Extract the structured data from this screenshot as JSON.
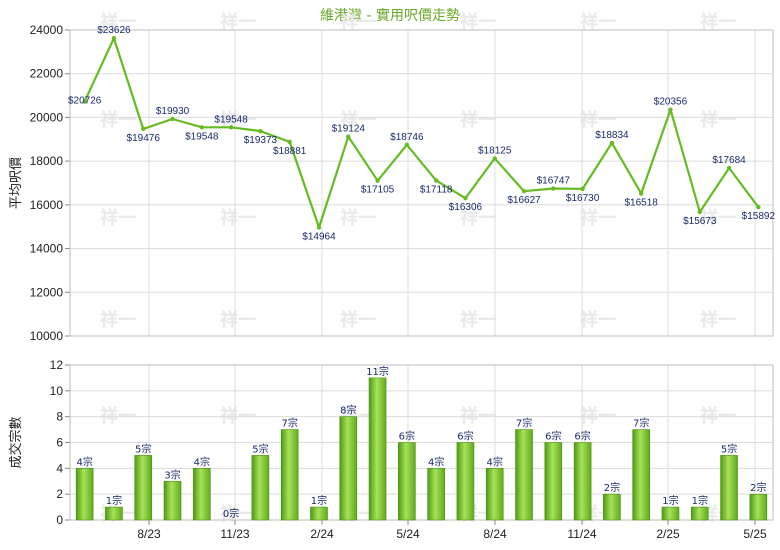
{
  "title": "維港灣 - 實用呎價走勢",
  "watermark": "祥一",
  "chart_data": [
    {
      "type": "line",
      "ylabel": "平均呎價",
      "ylim": [
        10000,
        24000
      ],
      "yticks": [
        "24000",
        "22000",
        "20000",
        "18000",
        "16000",
        "14000",
        "12000",
        "10000"
      ],
      "values": [
        20726,
        23626,
        19476,
        19930,
        19548,
        19548,
        19373,
        18881,
        14964,
        19124,
        17105,
        18746,
        17118,
        16306,
        18125,
        16627,
        16747,
        16730,
        18834,
        16518,
        20356,
        15673,
        17684,
        15892
      ],
      "labels": [
        "$20726",
        "$23626",
        "$19476",
        "$19930",
        "$19548",
        "$19548",
        "$19373",
        "$18881",
        "$14964",
        "$19124",
        "$17105",
        "$18746",
        "$17118",
        "$16306",
        "$18125",
        "$16627",
        "$16747",
        "$16730",
        "$18834",
        "$16518",
        "$20356",
        "$15673",
        "$17684",
        "$15892"
      ],
      "color": "#66bb22"
    },
    {
      "type": "bar",
      "ylabel": "成交宗數",
      "ylim": [
        0,
        12
      ],
      "yticks": [
        "12",
        "10",
        "8",
        "6",
        "4",
        "2",
        "0"
      ],
      "values": [
        4,
        1,
        5,
        3,
        4,
        0,
        5,
        7,
        1,
        8,
        11,
        6,
        4,
        6,
        4,
        7,
        6,
        6,
        2,
        7,
        1,
        1,
        5,
        2
      ],
      "labels": [
        "4宗",
        "1宗",
        "5宗",
        "3宗",
        "4宗",
        "0宗",
        "5宗",
        "7宗",
        "1宗",
        "8宗",
        "11宗",
        "6宗",
        "4宗",
        "6宗",
        "4宗",
        "7宗",
        "6宗",
        "6宗",
        "2宗",
        "7宗",
        "1宗",
        "1宗",
        "5宗",
        "2宗"
      ],
      "xticks": [
        "8/23",
        "11/23",
        "2/24",
        "5/24",
        "8/24",
        "11/24",
        "2/25",
        "5/25"
      ],
      "color": "#7dc52a"
    }
  ]
}
